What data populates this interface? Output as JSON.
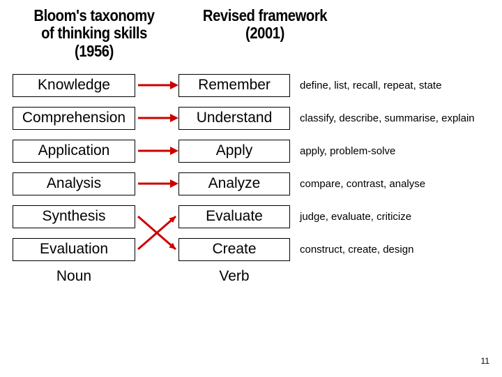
{
  "headers": {
    "left_line1": "Bloom's taxonomy",
    "left_line2": "of thinking skills (1956)",
    "right_line1": "Revised framework",
    "right_line2": "(2001)"
  },
  "rows": [
    {
      "left": "Knowledge",
      "right": "Remember",
      "verbs": "define, list, recall, repeat, state",
      "arrow": true
    },
    {
      "left": "Comprehension",
      "right": "Understand",
      "verbs": "classify, describe, summarise, explain",
      "arrow": true
    },
    {
      "left": "Application",
      "right": "Apply",
      "verbs": "apply, problem-solve",
      "arrow": true
    },
    {
      "left": "Analysis",
      "right": "Analyze",
      "verbs": "compare, contrast, analyse",
      "arrow": true
    },
    {
      "left": "Synthesis",
      "right": "Evaluate",
      "verbs": "judge, evaluate, criticize",
      "arrow": false
    },
    {
      "left": "Evaluation",
      "right": "Create",
      "verbs": "construct, create, design",
      "arrow": false
    }
  ],
  "footer": {
    "left": "Noun",
    "right": "Verb"
  },
  "page_number": "11",
  "colors": {
    "arrow": "#cc0000",
    "text": "#000000",
    "border": "#000000",
    "background": "#ffffff"
  },
  "style": {
    "header_fontsize": 23,
    "box_fontsize": 21,
    "verbs_fontsize": 15,
    "arrow_stroke_width": 3,
    "box_border_width": 1.5,
    "row_gap": 14
  }
}
